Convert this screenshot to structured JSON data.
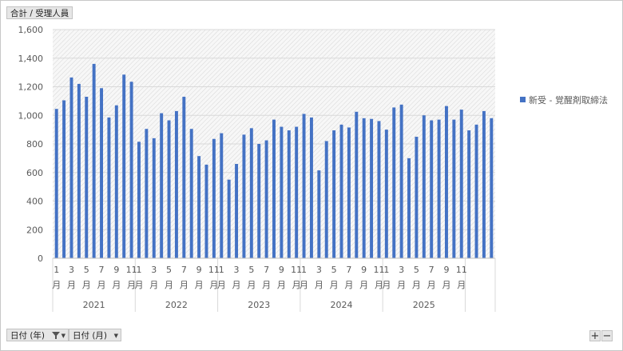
{
  "pivot": {
    "value_field": "合計 / 受理人員",
    "row_fields": [
      "日付 (年)",
      "日付 (月)"
    ],
    "dropdown_icon": "chevron-down-icon",
    "filter_icon": "funnel-icon",
    "expand_label": "+",
    "collapse_label": "−"
  },
  "colors": {
    "bar": "#4472c4",
    "grid": "#d9d9d9",
    "axis_text": "#595959"
  },
  "chart_data": {
    "type": "bar",
    "title": "",
    "xlabel": "",
    "ylabel": "",
    "ylim": [
      0,
      1600
    ],
    "yticks": [
      "0",
      "200",
      "400",
      "600",
      "800",
      "1,000",
      "1,200",
      "1,400",
      "1,600"
    ],
    "grid": true,
    "legend_position": "right",
    "years": [
      "2021",
      "2022",
      "2023",
      "2024",
      "2025"
    ],
    "months_per_year": 11,
    "month_tick_labels": [
      "1",
      "3",
      "5",
      "7",
      "9",
      "11"
    ],
    "month_unit": "月",
    "series": [
      {
        "name": "新受 - 覚醒剤取締法",
        "values": [
          1045,
          1105,
          1265,
          1220,
          1130,
          1360,
          1190,
          985,
          1070,
          1285,
          1235,
          815,
          905,
          840,
          1015,
          965,
          1030,
          1130,
          905,
          715,
          655,
          835,
          875,
          550,
          660,
          865,
          910,
          800,
          825,
          970,
          920,
          895,
          920,
          1010,
          985,
          615,
          820,
          895,
          935,
          915,
          1025,
          980,
          975,
          960,
          900,
          1055,
          1075,
          700,
          850,
          1000,
          965,
          970,
          1065,
          970,
          1040,
          895,
          935,
          1030,
          980
        ]
      }
    ]
  }
}
